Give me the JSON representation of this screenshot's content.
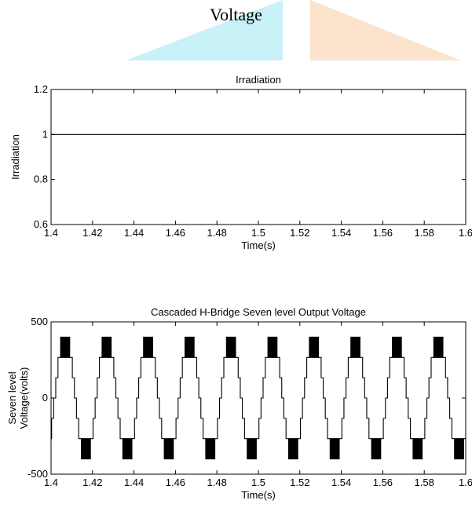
{
  "header": {
    "title": "Voltage"
  },
  "chart_data": [
    {
      "type": "line",
      "title": "Irradiation",
      "xlabel": "Time(s)",
      "ylabel": "Irradiation",
      "xlim": [
        1.4,
        1.6
      ],
      "ylim": [
        0.6,
        1.2
      ],
      "xticks": [
        "1.4",
        "1.42",
        "1.44",
        "1.46",
        "1.48",
        "1.5",
        "1.52",
        "1.54",
        "1.56",
        "1.58",
        "1.6"
      ],
      "yticks": [
        "0.6",
        "0.8",
        "1",
        "1.2"
      ],
      "grid": false,
      "series": [
        {
          "x": [
            1.4,
            1.6
          ],
          "y": [
            1,
            1
          ]
        }
      ]
    },
    {
      "type": "line",
      "title": "Cascaded H-Bridge Seven level Output Voltage",
      "xlabel": "Time(s)",
      "ylabel": [
        "Seven level",
        "Voltage(volts)"
      ],
      "xlim": [
        1.4,
        1.6
      ],
      "ylim": [
        -500,
        500
      ],
      "xticks": [
        "1.4",
        "1.42",
        "1.44",
        "1.46",
        "1.48",
        "1.5",
        "1.52",
        "1.54",
        "1.56",
        "1.58",
        "1.6"
      ],
      "yticks": [
        "-500",
        "0",
        "500"
      ],
      "grid": false,
      "waveform": {
        "frequency_hz": 50,
        "levels": [
          -400,
          -267,
          -133,
          0,
          133,
          267,
          400
        ]
      }
    }
  ]
}
